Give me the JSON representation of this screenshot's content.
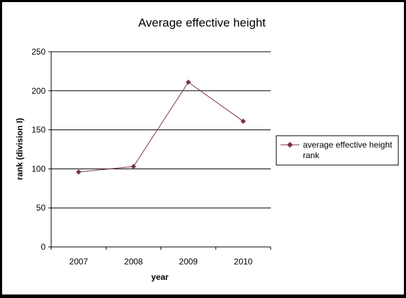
{
  "chart_data": {
    "type": "line",
    "title": "Average effective height",
    "xlabel": "year",
    "ylabel": "rank (division I)",
    "categories": [
      "2007",
      "2008",
      "2009",
      "2010"
    ],
    "series": [
      {
        "name": "average effective height rank",
        "values": [
          96,
          103,
          211,
          161
        ]
      }
    ],
    "ylim": [
      0,
      250
    ],
    "yticks": [
      0,
      50,
      100,
      150,
      200,
      250
    ],
    "grid": true,
    "legend": "right",
    "colors": {
      "series": "#7a2f56",
      "background": "#ffffff",
      "frame": "#000000"
    },
    "marker": "diamond"
  }
}
